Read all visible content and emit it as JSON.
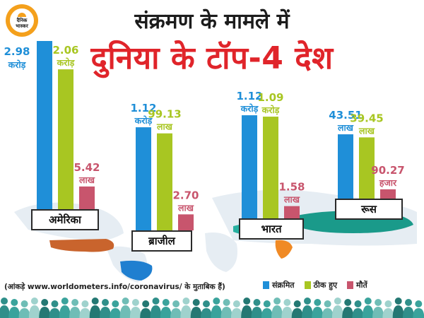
{
  "logo": {
    "line1": "दैनिक",
    "line2": "भास्कर"
  },
  "header": {
    "title_line1": "संक्रमण के मामले में",
    "title_line2": "दुनिया के टॉप-4 देश"
  },
  "colors": {
    "infected": "#1f8fd8",
    "recovered": "#a8c622",
    "deaths": "#c8556d",
    "title_red": "#e0242a"
  },
  "chart_data": {
    "type": "bar",
    "title": "दुनिया के टॉप-4 देश",
    "categories": [
      "अमेरिका",
      "ब्राजील",
      "भारत",
      "रूस"
    ],
    "series": [
      {
        "name": "संक्रमित",
        "values": [
          29800000,
          11200000,
          11200000,
          4351000
        ]
      },
      {
        "name": "ठीक हुए",
        "values": [
          20600000,
          9913000,
          10900000,
          3945000
        ]
      },
      {
        "name": "मौतें",
        "values": [
          542000,
          270000,
          158000,
          90270
        ]
      }
    ],
    "labels": [
      [
        {
          "num": "2.98",
          "unit": "करोड़"
        },
        {
          "num": "2.06",
          "unit": "करोड़"
        },
        {
          "num": "5.42",
          "unit": "लाख"
        }
      ],
      [
        {
          "num": "1.12",
          "unit": "करोड़"
        },
        {
          "num": "99.13",
          "unit": "लाख"
        },
        {
          "num": "2.70",
          "unit": "लाख"
        }
      ],
      [
        {
          "num": "1.12",
          "unit": "करोड़"
        },
        {
          "num": "1.09",
          "unit": "करोड़"
        },
        {
          "num": "1.58",
          "unit": "लाख"
        }
      ],
      [
        {
          "num": "43.51",
          "unit": "लाख"
        },
        {
          "num": "39.45",
          "unit": "लाख"
        },
        {
          "num": "90.27",
          "unit": "हजार"
        }
      ]
    ],
    "legend": [
      "संक्रमित",
      "ठीक हुए",
      "मौतें"
    ],
    "legend_position": "bottom-right"
  },
  "countries": [
    "अमेरिका",
    "ब्राजील",
    "भारत",
    "रूस"
  ],
  "source_note": "(आंकड़े www.worldometers.info/coronavirus/ के मुताबिक हैं)"
}
